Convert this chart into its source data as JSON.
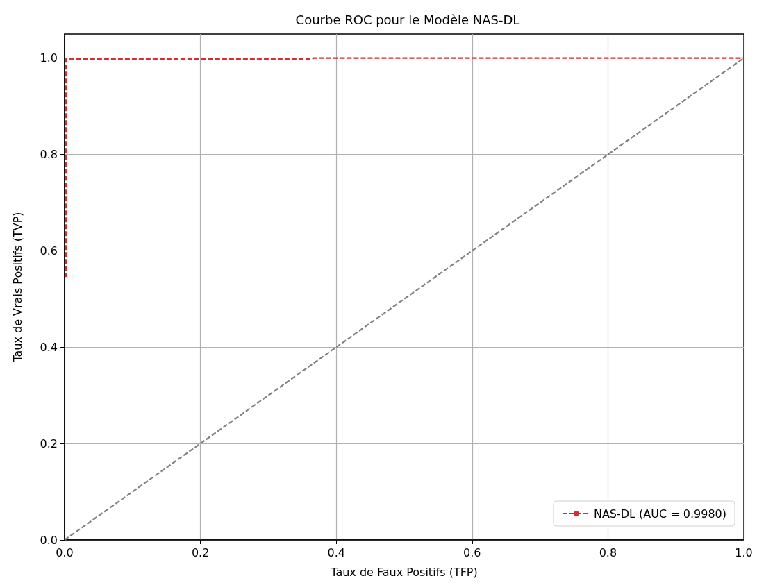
{
  "chart_data": {
    "type": "line",
    "title": "Courbe ROC pour le Modèle NAS-DL",
    "xlabel": "Taux de Faux Positifs (TFP)",
    "ylabel": "Taux de Vrais Positifs (TVP)",
    "series": [
      {
        "name": "NAS-DL (AUC = 0.9980)",
        "color": "#dd2a2a",
        "line_style": "dashed",
        "x": [
          0,
          0.002,
          0.002,
          0.365,
          0.367,
          1
        ],
        "values": [
          0.547,
          0.547,
          0.998,
          0.998,
          1,
          1
        ]
      },
      {
        "color": "#808080",
        "line_style": "dashed",
        "x": [
          0,
          1
        ],
        "values": [
          0,
          1
        ]
      }
    ],
    "xlim": [
      0,
      1
    ],
    "ylim": [
      0,
      1.05
    ],
    "xticks": [
      {
        "value": 0,
        "label": "0.0"
      },
      0.2,
      0.4,
      0.6,
      0.8,
      {
        "value": 1,
        "label": "1.0"
      }
    ],
    "yticks": [
      {
        "value": 0,
        "label": "0.0"
      },
      0.2,
      0.4,
      0.6,
      0.8,
      {
        "value": 1,
        "label": "1.0"
      }
    ],
    "grid": true,
    "legend": "bottom right",
    "marker": "none"
  }
}
